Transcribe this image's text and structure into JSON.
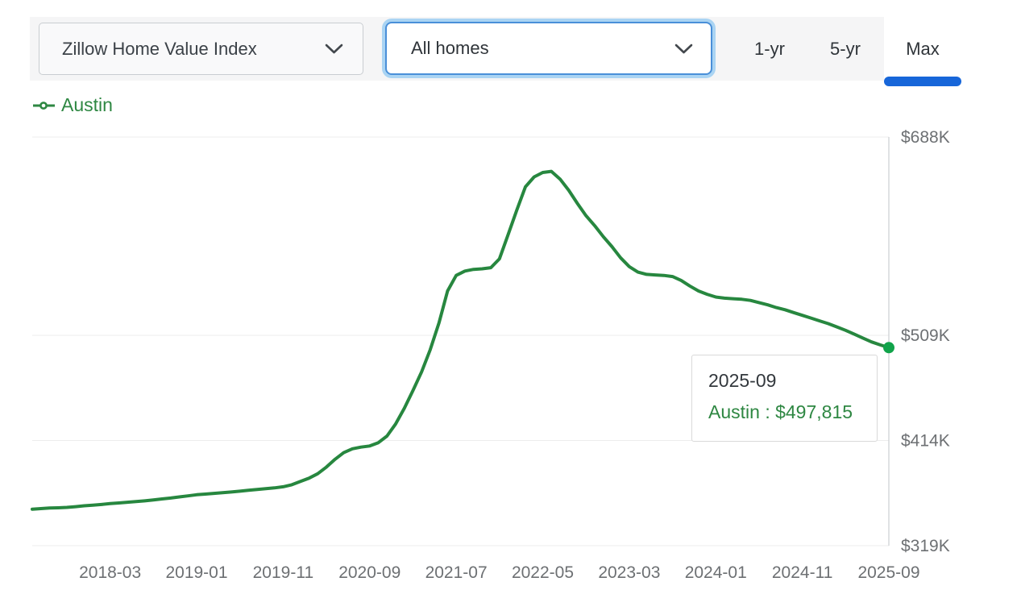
{
  "toolbar": {
    "metric_dropdown": {
      "label": "Zillow Home Value Index"
    },
    "homes_dropdown": {
      "label": "All homes"
    },
    "range_tabs": [
      {
        "label": "1-yr",
        "active": false
      },
      {
        "label": "5-yr",
        "active": false
      },
      {
        "label": "Max",
        "active": true
      }
    ]
  },
  "legend": {
    "series_label": "Austin"
  },
  "tooltip": {
    "date": "2025-09",
    "series": "Austin",
    "value": "$497,815",
    "label": "Austin : $497,815"
  },
  "colors": {
    "accent_blue": "#1766d9",
    "select_border_blue": "#4a8fd8",
    "focus_ring_blue": "#aad4f3",
    "line_green": "#27873f",
    "dot_green": "#11a34a",
    "text_green": "#2e8742",
    "axis_text_gray": "#6d7073",
    "gridline_gray": "#ececec",
    "axis_line_gray": "#d2d5d8"
  },
  "chart_data": {
    "type": "line",
    "unit": "USD",
    "grid": "horizontal",
    "legend_position": "top-left",
    "ylim": [
      319000,
      688000
    ],
    "y_ticks": [
      {
        "label": "$688K",
        "value": 688000
      },
      {
        "label": "$509K",
        "value": 509000
      },
      {
        "label": "$414K",
        "value": 414000
      },
      {
        "label": "$319K",
        "value": 319000
      }
    ],
    "x_ticks": [
      "2018-03",
      "2019-01",
      "2019-11",
      "2020-09",
      "2021-07",
      "2022-05",
      "2023-03",
      "2024-01",
      "2024-11",
      "2025-09"
    ],
    "series": [
      {
        "name": "Austin",
        "x": [
          "2017-06",
          "2017-07",
          "2017-08",
          "2017-09",
          "2017-10",
          "2017-11",
          "2017-12",
          "2018-01",
          "2018-02",
          "2018-03",
          "2018-04",
          "2018-05",
          "2018-06",
          "2018-07",
          "2018-08",
          "2018-09",
          "2018-10",
          "2018-11",
          "2018-12",
          "2019-01",
          "2019-02",
          "2019-03",
          "2019-04",
          "2019-05",
          "2019-06",
          "2019-07",
          "2019-08",
          "2019-09",
          "2019-10",
          "2019-11",
          "2019-12",
          "2020-01",
          "2020-02",
          "2020-03",
          "2020-04",
          "2020-05",
          "2020-06",
          "2020-07",
          "2020-08",
          "2020-09",
          "2020-10",
          "2020-11",
          "2020-12",
          "2021-01",
          "2021-02",
          "2021-03",
          "2021-04",
          "2021-05",
          "2021-06",
          "2021-07",
          "2021-08",
          "2021-09",
          "2021-10",
          "2021-11",
          "2021-12",
          "2022-01",
          "2022-02",
          "2022-03",
          "2022-04",
          "2022-05",
          "2022-06",
          "2022-07",
          "2022-08",
          "2022-09",
          "2022-10",
          "2022-11",
          "2022-12",
          "2023-01",
          "2023-02",
          "2023-03",
          "2023-04",
          "2023-05",
          "2023-06",
          "2023-07",
          "2023-08",
          "2023-09",
          "2023-10",
          "2023-11",
          "2023-12",
          "2024-01",
          "2024-02",
          "2024-03",
          "2024-04",
          "2024-05",
          "2024-06",
          "2024-07",
          "2024-08",
          "2024-09",
          "2024-10",
          "2024-11",
          "2024-12",
          "2025-01",
          "2025-02",
          "2025-03",
          "2025-04",
          "2025-05",
          "2025-06",
          "2025-07",
          "2025-08",
          "2025-09"
        ],
        "values": [
          352000,
          352500,
          353000,
          353200,
          353600,
          354200,
          355000,
          355500,
          356200,
          357000,
          357600,
          358200,
          358800,
          359500,
          360300,
          361200,
          362000,
          363000,
          364000,
          365000,
          365600,
          366200,
          366800,
          367500,
          368200,
          369000,
          369800,
          370500,
          371200,
          372200,
          374000,
          377000,
          380000,
          384000,
          390000,
          397000,
          403000,
          406500,
          408000,
          409000,
          412000,
          418000,
          429000,
          443000,
          459000,
          476000,
          496000,
          520000,
          549000,
          563000,
          567000,
          568500,
          569000,
          570000,
          578000,
          600000,
          622000,
          643000,
          652000,
          656000,
          657000,
          650000,
          640000,
          628000,
          617000,
          608000,
          598000,
          589000,
          579000,
          571000,
          566000,
          564000,
          563500,
          563000,
          562000,
          558500,
          553500,
          549000,
          546000,
          543500,
          542500,
          542000,
          541500,
          540500,
          538500,
          536500,
          534000,
          532000,
          529500,
          527000,
          524500,
          522000,
          519500,
          516500,
          513500,
          510000,
          506500,
          503000,
          500300,
          497815
        ]
      }
    ],
    "last_point": {
      "date": "2025-09",
      "value": 497815
    }
  }
}
